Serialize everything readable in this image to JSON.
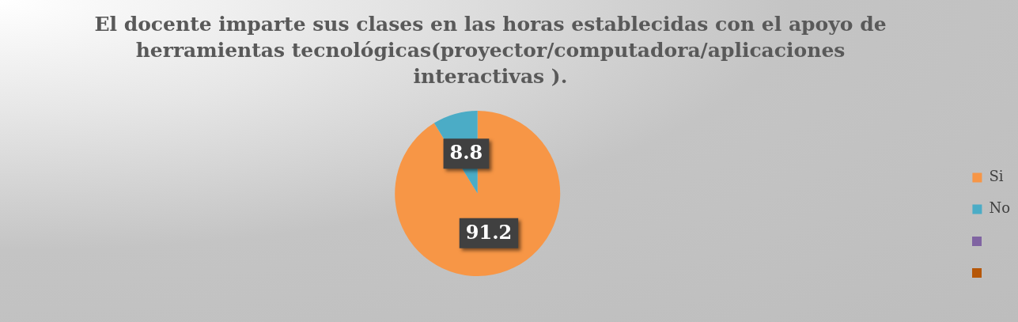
{
  "chart_data": {
    "type": "pie",
    "title": "El docente imparte sus clases en las horas establecidas con el apoyo de herramientas tecnológicas(proyector/computadora/aplicaciones interactivas ).",
    "categories": [
      "Si",
      "No",
      null,
      null
    ],
    "values": [
      91.2,
      8.8,
      0,
      0
    ],
    "colors": [
      "#f79646",
      "#4bacc6",
      "#8064a2",
      "#b65708"
    ],
    "value_labels": [
      "91.2",
      "8.8",
      null,
      null
    ],
    "legend": "right"
  }
}
